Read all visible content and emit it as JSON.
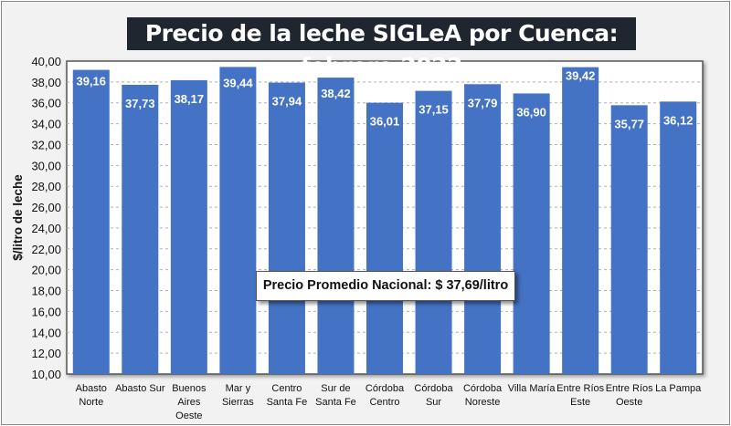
{
  "chart_data": {
    "type": "bar",
    "title": "Precio de la leche SIGLeA por Cuenca: febrero 2022",
    "xlabel": "",
    "ylabel": "$/litro de leche",
    "ylim": [
      10,
      40
    ],
    "yticks": [
      "10,00",
      "12,00",
      "14,00",
      "16,00",
      "18,00",
      "20,00",
      "22,00",
      "24,00",
      "26,00",
      "28,00",
      "30,00",
      "32,00",
      "34,00",
      "36,00",
      "38,00",
      "40,00"
    ],
    "grid": true,
    "categories": [
      [
        "Abasto",
        "Norte"
      ],
      [
        "Abasto Sur"
      ],
      [
        "Buenos",
        "Aires",
        "Oeste"
      ],
      [
        "Mar y",
        "Sierras"
      ],
      [
        "Centro",
        "Santa Fe"
      ],
      [
        "Sur de",
        "Santa Fe"
      ],
      [
        "Córdoba",
        "Centro"
      ],
      [
        "Córdoba",
        "Sur"
      ],
      [
        "Córdoba",
        "Noreste"
      ],
      [
        "Villa María"
      ],
      [
        "Entre Ríos",
        "Este"
      ],
      [
        "Entre Ríos",
        "Oeste"
      ],
      [
        "La Pampa"
      ]
    ],
    "values": [
      39.16,
      37.73,
      38.17,
      39.44,
      37.94,
      38.42,
      36.01,
      37.15,
      37.79,
      36.9,
      39.42,
      35.77,
      36.12
    ],
    "data_labels": [
      "39,16",
      "37,73",
      "38,17",
      "39,44",
      "37,94",
      "38,42",
      "36,01",
      "37,15",
      "37,79",
      "36,90",
      "39,42",
      "35,77",
      "36,12"
    ],
    "annotation": "Precio Promedio Nacional: $ 37,69/litro",
    "colors": {
      "bar": "#4472c4",
      "title_bg": "#1f2630"
    }
  }
}
